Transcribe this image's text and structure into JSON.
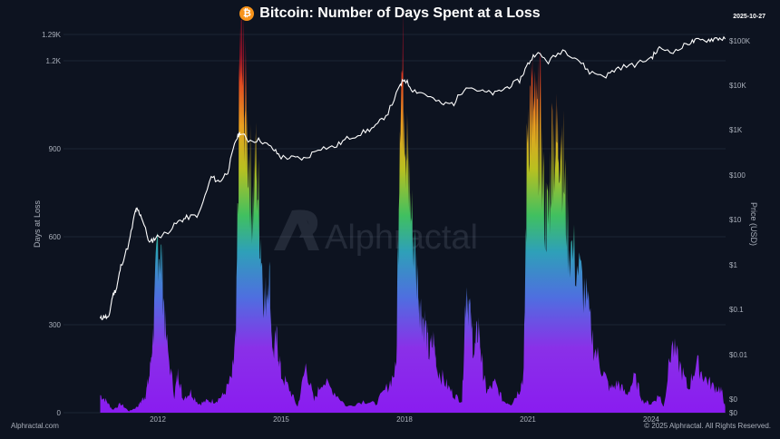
{
  "header": {
    "title": "Bitcoin: Number of Days Spent at a Loss",
    "icon": "bitcoin-icon",
    "date": "2025-10-27"
  },
  "watermark": "Alphractal",
  "footer": {
    "left": "Alphractal.com",
    "right": "© 2025 Alphractal. All Rights Reserved."
  },
  "colors": {
    "background": "#0d1320",
    "price_line": "#ffffff",
    "gradient_low": "#8a1cf0",
    "gradient_mid1": "#3f7fe0",
    "gradient_mid2": "#40c070",
    "gradient_mid3": "#e0b020",
    "gradient_high": "#d01c1c",
    "bitcoin_orange": "#f7931a"
  },
  "chart_data": {
    "type": "area",
    "title": "Bitcoin: Number of Days Spent at a Loss",
    "xlabel": "",
    "ylabel": "Days at Loss",
    "y2label": "Price (USD)",
    "x_ticks": [
      "2012",
      "2015",
      "2018",
      "2021",
      "2024"
    ],
    "y_ticks": [
      "0",
      "300",
      "600",
      "900",
      "1.2K",
      "1.29K"
    ],
    "y2_ticks": [
      "$100K",
      "$10K",
      "$1K",
      "$100",
      "$10",
      "$1",
      "$0.1",
      "$0.01",
      "$0",
      "$0"
    ],
    "ylim": [
      0,
      1290
    ],
    "y2_scale": "log",
    "grid": true,
    "legend": "none",
    "series": [
      {
        "name": "Days at Loss",
        "type": "area",
        "color_scale": "purple-blue-green-yellow-red (by value)",
        "x": [
          2010.6,
          2010.75,
          2010.9,
          2011.1,
          2011.3,
          2011.5,
          2011.6,
          2011.7,
          2011.8,
          2011.9,
          2012.0,
          2012.1,
          2012.2,
          2012.4,
          2012.5,
          2012.6,
          2012.8,
          2013.0,
          2013.2,
          2013.4,
          2013.6,
          2013.8,
          2013.9,
          2014.0,
          2014.1,
          2014.2,
          2014.3,
          2014.4,
          2014.5,
          2014.6,
          2014.7,
          2014.8,
          2014.9,
          2015.0,
          2015.2,
          2015.4,
          2015.6,
          2015.8,
          2016.0,
          2016.3,
          2016.6,
          2017.0,
          2017.3,
          2017.6,
          2017.8,
          2017.9,
          2018.0,
          2018.05,
          2018.1,
          2018.2,
          2018.3,
          2018.4,
          2018.5,
          2018.6,
          2018.7,
          2018.8,
          2019.0,
          2019.2,
          2019.4,
          2019.5,
          2019.6,
          2019.7,
          2019.8,
          2019.9,
          2020.0,
          2020.2,
          2020.4,
          2020.6,
          2020.8,
          2020.9,
          2021.0,
          2021.1,
          2021.2,
          2021.3,
          2021.4,
          2021.5,
          2021.6,
          2021.7,
          2021.8,
          2021.9,
          2022.0,
          2022.2,
          2022.4,
          2022.6,
          2022.8,
          2023.0,
          2023.2,
          2023.4,
          2023.6,
          2023.8,
          2024.0,
          2024.2,
          2024.3,
          2024.5,
          2024.7,
          2024.9,
          2025.1,
          2025.3,
          2025.5,
          2025.7,
          2025.8
        ],
        "values": [
          60,
          40,
          10,
          30,
          5,
          20,
          40,
          60,
          130,
          300,
          600,
          500,
          250,
          60,
          140,
          50,
          70,
          30,
          40,
          40,
          60,
          120,
          250,
          1220,
          1100,
          900,
          700,
          850,
          600,
          350,
          500,
          200,
          250,
          130,
          80,
          20,
          160,
          40,
          110,
          70,
          20,
          40,
          30,
          90,
          150,
          1180,
          1100,
          900,
          800,
          620,
          480,
          350,
          300,
          200,
          250,
          150,
          100,
          60,
          40,
          450,
          320,
          200,
          300,
          150,
          70,
          100,
          40,
          30,
          80,
          130,
          1050,
          1030,
          950,
          1000,
          700,
          650,
          950,
          900,
          1000,
          750,
          580,
          500,
          400,
          230,
          150,
          80,
          100,
          60,
          120,
          40,
          30,
          60,
          20,
          230,
          160,
          80,
          170,
          120,
          90,
          80,
          20
        ]
      },
      {
        "name": "BTC Price (USD)",
        "type": "line",
        "axis": "right-log",
        "x": [
          2010.6,
          2010.7,
          2010.8,
          2010.9,
          2011.0,
          2011.1,
          2011.3,
          2011.45,
          2011.5,
          2011.6,
          2011.8,
          2011.95,
          2012.2,
          2012.5,
          2012.7,
          2013.0,
          2013.3,
          2013.5,
          2013.7,
          2013.9,
          2014.0,
          2014.2,
          2014.5,
          2014.8,
          2015.0,
          2015.3,
          2015.6,
          2015.9,
          2016.3,
          2016.6,
          2017.0,
          2017.3,
          2017.6,
          2017.9,
          2018.0,
          2018.2,
          2018.5,
          2018.9,
          2019.2,
          2019.5,
          2019.9,
          2020.2,
          2020.5,
          2020.8,
          2021.0,
          2021.2,
          2021.5,
          2021.85,
          2022.2,
          2022.5,
          2022.9,
          2023.2,
          2023.6,
          2024.0,
          2024.2,
          2024.6,
          2024.9,
          2025.1,
          2025.4,
          2025.6,
          2025.8
        ],
        "values": [
          0.06,
          0.07,
          0.06,
          0.2,
          0.3,
          0.9,
          3,
          15,
          17,
          12,
          3,
          4,
          5,
          9,
          11,
          13,
          90,
          70,
          120,
          600,
          900,
          600,
          600,
          380,
          250,
          240,
          230,
          400,
          420,
          650,
          900,
          1200,
          2500,
          10000,
          14000,
          8000,
          6500,
          3800,
          4000,
          10000,
          7200,
          6600,
          9200,
          13000,
          30000,
          55000,
          34000,
          63000,
          40000,
          20000,
          16500,
          25000,
          29000,
          42000,
          67000,
          58000,
          90000,
          100000,
          105000,
          115000,
          110000
        ]
      }
    ]
  }
}
